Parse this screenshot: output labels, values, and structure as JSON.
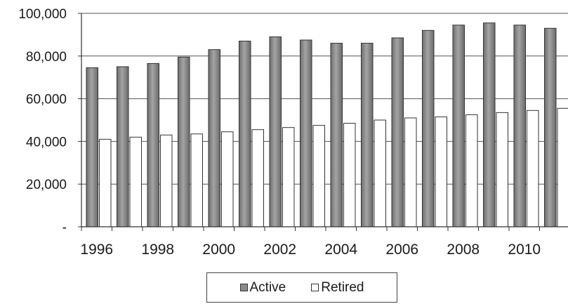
{
  "chart_data": {
    "type": "bar",
    "title": "",
    "xlabel": "",
    "ylabel": "",
    "ylim": [
      0,
      100000
    ],
    "yticks": [
      0,
      20000,
      40000,
      60000,
      80000,
      100000
    ],
    "ytick_labels": [
      "-",
      "20,000",
      "40,000",
      "60,000",
      "80,000",
      "100,000"
    ],
    "categories": [
      "1996",
      "1997",
      "1998",
      "1999",
      "2000",
      "2001",
      "2002",
      "2003",
      "2004",
      "2005",
      "2006",
      "2007",
      "2008",
      "2009",
      "2010",
      "2011"
    ],
    "xtick_labels": [
      "1996",
      "",
      "1998",
      "",
      "2000",
      "",
      "2002",
      "",
      "2004",
      "",
      "2006",
      "",
      "2008",
      "",
      "2010",
      ""
    ],
    "series": [
      {
        "name": "Active",
        "color": "#8a8a8a",
        "values": [
          74500,
          75000,
          76500,
          79500,
          83000,
          87000,
          89000,
          87500,
          86000,
          86000,
          88500,
          92000,
          94500,
          95500,
          94500,
          93000
        ]
      },
      {
        "name": "Retired",
        "color": "#ffffff",
        "values": [
          41000,
          42000,
          43000,
          43500,
          44500,
          45500,
          46500,
          47500,
          48500,
          50000,
          51000,
          51500,
          52500,
          53500,
          54500,
          55500
        ]
      }
    ],
    "grid": true,
    "legend": "bottom"
  }
}
